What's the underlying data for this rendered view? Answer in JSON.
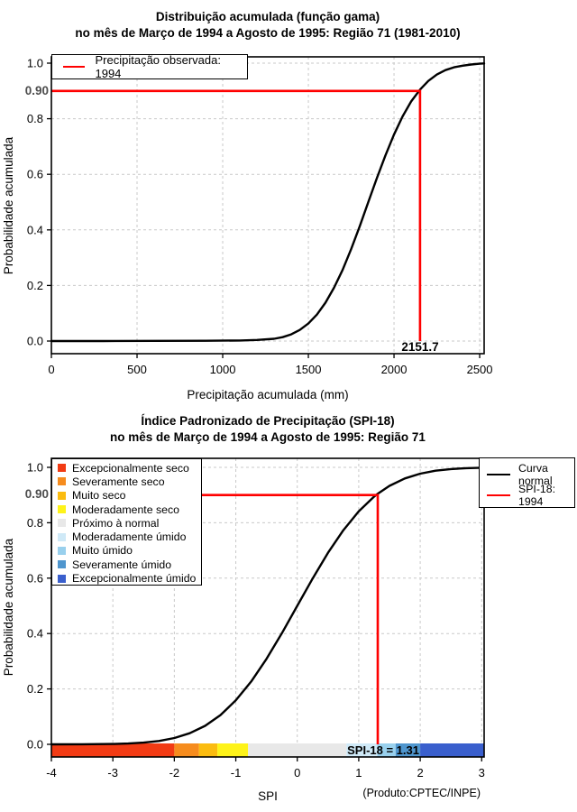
{
  "page": {
    "background": "#ffffff",
    "text_color": "#000000",
    "highlight_color": "#ff0000",
    "muted_label_color": "#4d4d4d"
  },
  "chart_data": [
    {
      "type": "line",
      "title": "Distribuição acumulada (função gama)",
      "subtitle": "no mês de Março de 1994 a Agosto de 1995: Região 71 (1981-2010)",
      "xlabel": "Precipitação acumulada (mm)",
      "ylabel": "Probabilidade acumulada",
      "xlim": [
        0,
        2526
      ],
      "ylim": [
        0,
        1
      ],
      "grid": true,
      "legend_position": "top-left",
      "xticks": [
        0,
        500,
        1000,
        1500,
        2000,
        2500
      ],
      "xtick_labels": [
        "0",
        "500",
        "1000",
        "1500",
        "2000",
        "2500"
      ],
      "yticks": [
        0,
        0.2,
        0.4,
        0.6,
        0.8,
        1.0
      ],
      "ytick_labels": [
        "0.0",
        "0.2",
        "0.4",
        "0.6",
        "0.8",
        "1.0"
      ],
      "legend": [
        {
          "label": "Precipitação observada: 1994",
          "color": "#ff0000"
        }
      ],
      "highlight": {
        "x": 2151.7,
        "y": 0.9,
        "x_label": "2151.7",
        "y_label": "0.90",
        "color": "#ff0000"
      },
      "series": [
        {
          "name": "Distribuição gama acumulada",
          "color": "#000000",
          "points": [
            [
              0,
              0
            ],
            [
              300,
              0
            ],
            [
              600,
              0.0005
            ],
            [
              900,
              0.001
            ],
            [
              1100,
              0.002
            ],
            [
              1200,
              0.004
            ],
            [
              1300,
              0.008
            ],
            [
              1350,
              0.014
            ],
            [
              1400,
              0.024
            ],
            [
              1450,
              0.04
            ],
            [
              1500,
              0.063
            ],
            [
              1550,
              0.095
            ],
            [
              1600,
              0.138
            ],
            [
              1650,
              0.192
            ],
            [
              1700,
              0.256
            ],
            [
              1750,
              0.331
            ],
            [
              1800,
              0.413
            ],
            [
              1850,
              0.5
            ],
            [
              1900,
              0.586
            ],
            [
              1950,
              0.668
            ],
            [
              2000,
              0.743
            ],
            [
              2050,
              0.808
            ],
            [
              2100,
              0.862
            ],
            [
              2151.7,
              0.905
            ],
            [
              2200,
              0.936
            ],
            [
              2250,
              0.959
            ],
            [
              2300,
              0.975
            ],
            [
              2350,
              0.985
            ],
            [
              2400,
              0.991
            ],
            [
              2450,
              0.995
            ],
            [
              2500,
              0.998
            ],
            [
              2526,
              0.999
            ]
          ]
        }
      ]
    },
    {
      "type": "line",
      "title": "Índice Padronizado de Precipitação (SPI-18)",
      "subtitle": "no mês de Março de 1994 a Agosto de 1995: Região 71",
      "xlabel": "SPI",
      "ylabel": "Probabilidade acumulada",
      "footnote": "(Produto:CPTEC/INPE)",
      "xlim": [
        -4,
        3.04
      ],
      "ylim": [
        0,
        1
      ],
      "grid": true,
      "xticks": [
        -4,
        -3,
        -2,
        -1,
        0,
        1,
        2,
        3
      ],
      "xtick_labels": [
        "-4",
        "-3",
        "-2",
        "-1",
        "0",
        "1",
        "2",
        "3"
      ],
      "yticks": [
        0,
        0.2,
        0.4,
        0.6,
        0.8,
        1.0
      ],
      "ytick_labels": [
        "0.0",
        "0.2",
        "0.4",
        "0.6",
        "0.8",
        "1.0"
      ],
      "legend": [
        {
          "label": "Curva normal",
          "label_line1": "Curva",
          "label_line2": "normal",
          "color": "#000000"
        },
        {
          "label": "SPI-18: 1994",
          "color": "#ff0000"
        }
      ],
      "highlight": {
        "x": 1.31,
        "y": 0.9,
        "y_label": "0.90",
        "bar_label": "SPI-18 = 1.31",
        "color": "#ff0000"
      },
      "categories": [
        {
          "label": "Excepcionalmente seco",
          "color": "#f23b14",
          "range": [
            -4,
            -2
          ]
        },
        {
          "label": "Severamente seco",
          "color": "#f68c1e",
          "range": [
            -2,
            -1.6
          ]
        },
        {
          "label": "Muito seco",
          "color": "#fbbc10",
          "range": [
            -1.6,
            -1.3
          ]
        },
        {
          "label": "Moderadamente seco",
          "color": "#fef319",
          "range": [
            -1.3,
            -0.8
          ]
        },
        {
          "label": "Próximo à normal",
          "color": "#e8e8e8",
          "range": [
            -0.8,
            0.8
          ]
        },
        {
          "label": "Moderadamente úmido",
          "color": "#cfe9f7",
          "range": [
            0.8,
            1.3
          ]
        },
        {
          "label": "Muito úmido",
          "color": "#99d0ed",
          "range": [
            1.3,
            1.6
          ]
        },
        {
          "label": "Severamente úmido",
          "color": "#4f96ce",
          "range": [
            1.6,
            2
          ]
        },
        {
          "label": "Excepcionalmente úmido",
          "color": "#3a5fcd",
          "range": [
            2,
            3.04
          ]
        }
      ],
      "series": [
        {
          "name": "Curva normal",
          "color": "#000000",
          "points": [
            [
              -4,
              0.0001
            ],
            [
              -3.5,
              0.0002
            ],
            [
              -3,
              0.0013
            ],
            [
              -2.75,
              0.003
            ],
            [
              -2.5,
              0.0062
            ],
            [
              -2.25,
              0.0122
            ],
            [
              -2,
              0.0228
            ],
            [
              -1.75,
              0.0401
            ],
            [
              -1.5,
              0.0668
            ],
            [
              -1.25,
              0.1056
            ],
            [
              -1,
              0.1587
            ],
            [
              -0.75,
              0.2266
            ],
            [
              -0.5,
              0.3085
            ],
            [
              -0.25,
              0.4013
            ],
            [
              0,
              0.5
            ],
            [
              0.25,
              0.5987
            ],
            [
              0.5,
              0.6915
            ],
            [
              0.75,
              0.7734
            ],
            [
              1,
              0.8413
            ],
            [
              1.25,
              0.8944
            ],
            [
              1.31,
              0.9049
            ],
            [
              1.5,
              0.9332
            ],
            [
              1.75,
              0.9599
            ],
            [
              2,
              0.9772
            ],
            [
              2.25,
              0.9878
            ],
            [
              2.5,
              0.9938
            ],
            [
              2.75,
              0.997
            ],
            [
              3,
              0.9987
            ],
            [
              3.04,
              0.9988
            ]
          ]
        }
      ]
    }
  ]
}
